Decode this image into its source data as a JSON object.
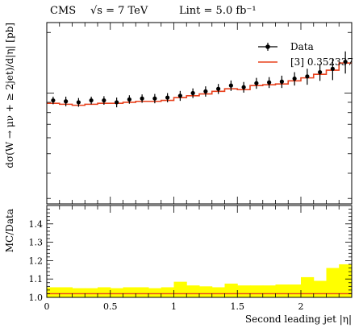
{
  "header": {
    "experiment": "CMS",
    "energy": "√s = 7 TeV",
    "lumi": "Lint = 5.0 fb⁻¹"
  },
  "chart_data": [
    {
      "type": "line",
      "panel": "main",
      "ylabel": "dσ(W → μν + ≥ 2jet)/d|η| [pb]",
      "xlim": [
        0,
        2.4
      ],
      "y_scale": "log",
      "y_tick_labels": [],
      "legend": {
        "position": "top-right",
        "entries": [
          {
            "label": "Data",
            "style": "points",
            "color": "#000000"
          },
          {
            "label": "[3] 0.352337",
            "style": "line",
            "color": "#e8401c"
          }
        ]
      },
      "bin_edges": [
        0,
        0.1,
        0.2,
        0.3,
        0.4,
        0.5,
        0.6,
        0.7,
        0.8,
        0.9,
        1.0,
        1.1,
        1.2,
        1.3,
        1.4,
        1.5,
        1.6,
        1.7,
        1.8,
        1.9,
        2.0,
        2.1,
        2.2,
        2.3,
        2.4
      ],
      "series": [
        {
          "name": "Data",
          "x": [
            0.05,
            0.15,
            0.25,
            0.35,
            0.45,
            0.55,
            0.65,
            0.75,
            0.85,
            0.95,
            1.05,
            1.15,
            1.25,
            1.35,
            1.45,
            1.55,
            1.65,
            1.75,
            1.85,
            1.95,
            2.05,
            2.15,
            2.25,
            2.35
          ],
          "values": [
            0.92,
            0.91,
            0.9,
            0.92,
            0.92,
            0.9,
            0.93,
            0.94,
            0.94,
            0.95,
            0.97,
            1.0,
            1.02,
            1.05,
            1.09,
            1.07,
            1.12,
            1.13,
            1.14,
            1.18,
            1.21,
            1.27,
            1.32,
            1.43
          ],
          "err": [
            0.04,
            0.05,
            0.045,
            0.04,
            0.045,
            0.05,
            0.045,
            0.045,
            0.05,
            0.05,
            0.055,
            0.055,
            0.06,
            0.06,
            0.065,
            0.065,
            0.07,
            0.07,
            0.08,
            0.09,
            0.11,
            0.12,
            0.16,
            0.18
          ]
        },
        {
          "name": "[3] 0.352337",
          "values": [
            0.89,
            0.88,
            0.87,
            0.88,
            0.89,
            0.89,
            0.9,
            0.91,
            0.91,
            0.92,
            0.95,
            0.97,
            0.99,
            1.02,
            1.05,
            1.04,
            1.09,
            1.1,
            1.11,
            1.15,
            1.19,
            1.24,
            1.3,
            1.41
          ]
        }
      ]
    },
    {
      "type": "bar",
      "panel": "ratio",
      "xlabel": "Second leading jet |η|",
      "ylabel": "MC/Data",
      "xlim": [
        0,
        2.4
      ],
      "ylim": [
        1.0,
        1.5
      ],
      "x_ticks": [
        0,
        0.5,
        1,
        1.5,
        2
      ],
      "x_tick_labels": [
        "0",
        "0.5",
        "1",
        "1.5",
        "2"
      ],
      "y_ticks": [
        1.0,
        1.1,
        1.2,
        1.3,
        1.4
      ],
      "y_tick_labels": [
        "1.0",
        "1.1",
        "1.2",
        "1.3",
        "1.4"
      ],
      "band_color": "#ffff00",
      "series": [
        {
          "name": "band",
          "values": [
            1.055,
            1.055,
            1.05,
            1.05,
            1.055,
            1.05,
            1.055,
            1.055,
            1.05,
            1.055,
            1.085,
            1.065,
            1.06,
            1.055,
            1.075,
            1.065,
            1.065,
            1.065,
            1.07,
            1.07,
            1.11,
            1.09,
            1.16,
            1.18
          ]
        },
        {
          "name": "[3] 0.352337",
          "values": [
            1.02,
            1.02,
            1.02,
            1.02,
            1.02,
            1.02,
            1.02,
            1.02,
            1.02,
            1.02,
            1.02,
            1.02,
            1.02,
            1.02,
            1.02,
            1.02,
            1.02,
            1.02,
            1.02,
            1.02,
            1.02,
            1.02,
            1.02,
            1.02
          ]
        }
      ]
    }
  ]
}
